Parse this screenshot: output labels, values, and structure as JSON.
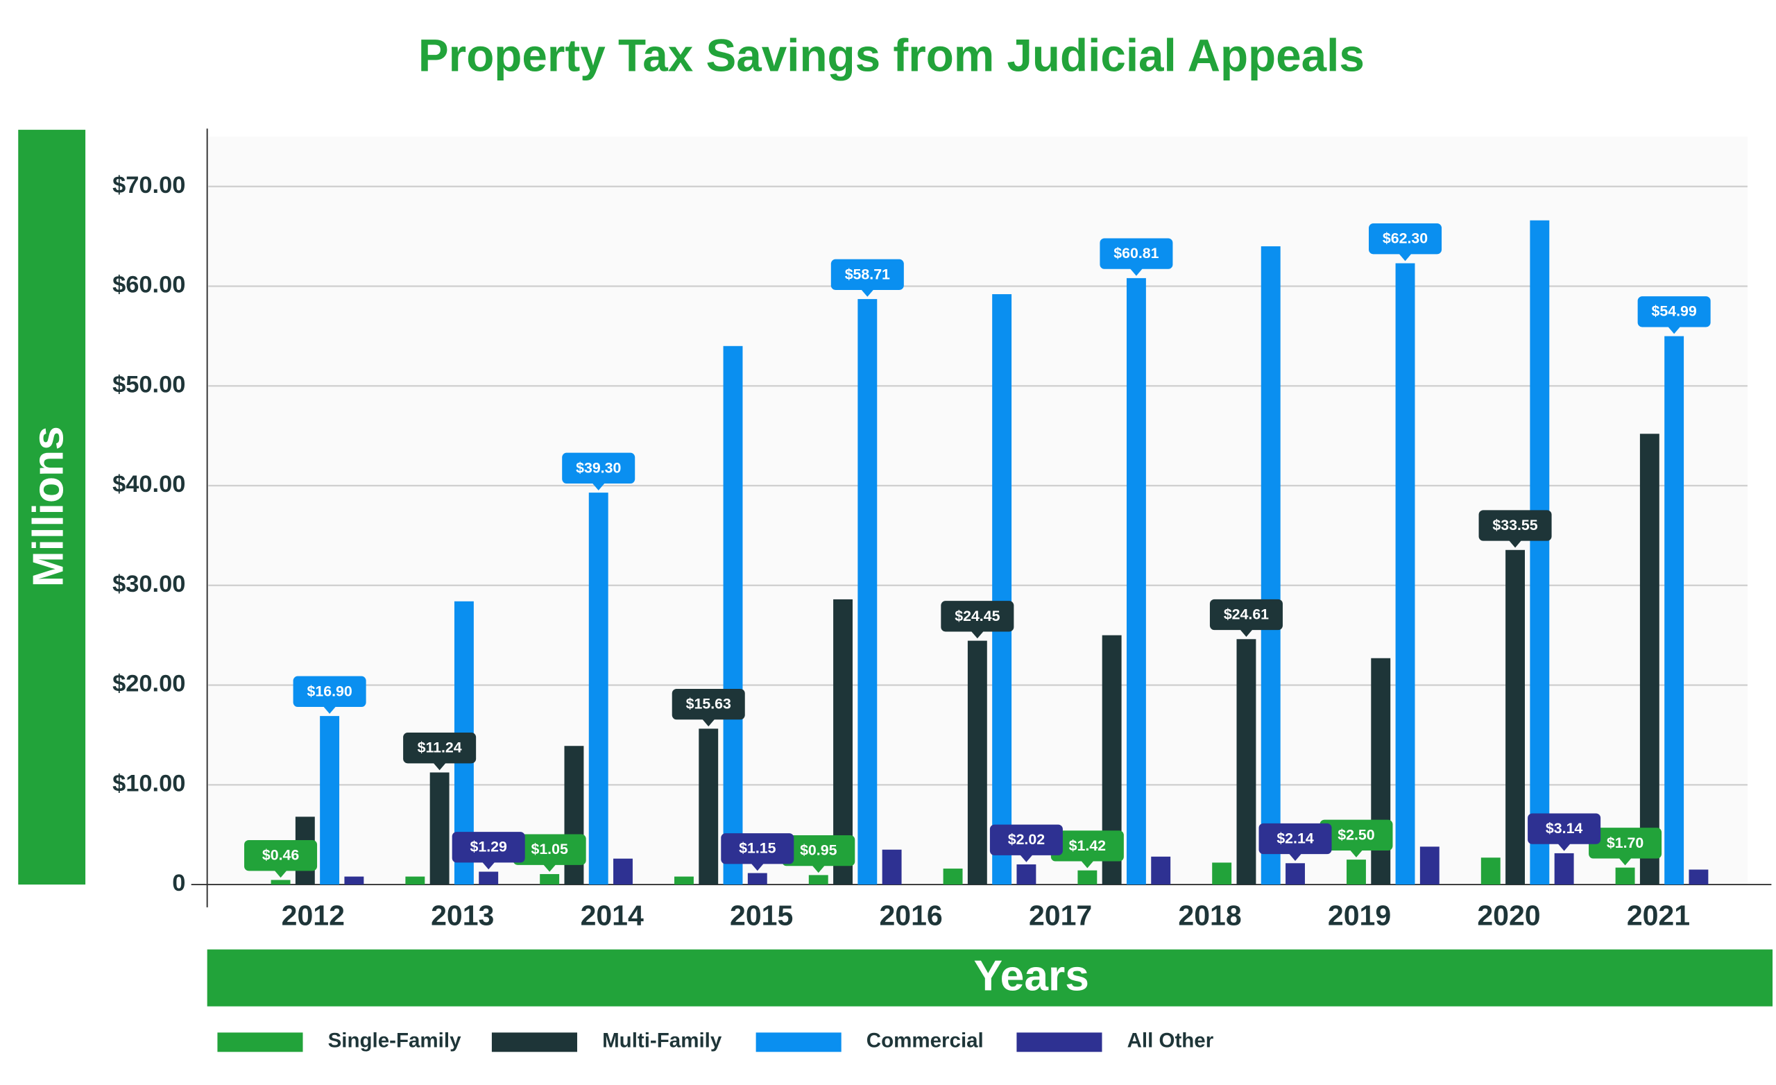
{
  "chart_data": {
    "type": "bar",
    "title": "Property Tax Savings from Judicial Appeals",
    "y_label": "Millions",
    "x_label": "Years",
    "categories": [
      "2012",
      "2013",
      "2014",
      "2015",
      "2016",
      "2017",
      "2018",
      "2019",
      "2020",
      "2021",
      null
    ],
    "series": [
      {
        "name": "Single-Family",
        "color": "#22a33a",
        "values": [
          0.46,
          0.8,
          1.05,
          0.8,
          0.95,
          1.6,
          1.42,
          2.2,
          2.5,
          2.7,
          1.7
        ],
        "value_labels": [
          "$0.46",
          null,
          "$1.05",
          null,
          "$0.95",
          null,
          "$1.42",
          null,
          "$2.50",
          null,
          "$1.70"
        ]
      },
      {
        "name": "Multi-Family",
        "color": "#1e3538",
        "values": [
          6.8,
          11.24,
          13.9,
          15.63,
          28.6,
          24.45,
          25.0,
          24.61,
          22.7,
          33.55,
          45.2
        ],
        "value_labels": [
          null,
          "$11.24",
          null,
          "$15.63",
          null,
          "$24.45",
          null,
          "$24.61",
          null,
          "$33.55",
          null
        ]
      },
      {
        "name": "Commercial",
        "color": "#0a8ff0",
        "values": [
          16.9,
          28.4,
          39.3,
          54.0,
          58.71,
          59.2,
          60.81,
          64.0,
          62.3,
          66.6,
          54.99
        ],
        "value_labels": [
          "$16.90",
          null,
          "$39.30",
          null,
          "$58.71",
          null,
          "$60.81",
          null,
          "$62.30",
          null,
          "$54.99"
        ]
      },
      {
        "name": "All Other",
        "color": "#2e3192",
        "values": [
          0.8,
          1.29,
          2.6,
          1.15,
          3.5,
          2.02,
          2.8,
          2.14,
          3.8,
          3.14,
          1.5
        ],
        "value_labels": [
          null,
          "$1.29",
          null,
          "$1.15",
          null,
          "$2.02",
          null,
          "$2.14",
          null,
          "$3.14",
          null
        ]
      }
    ],
    "ylim": [
      0,
      75
    ],
    "yticks": [
      0,
      {
        "value": 10,
        "label": "$10.00"
      },
      {
        "value": 20,
        "label": "$20.00"
      },
      {
        "value": 30,
        "label": "$30.00"
      },
      {
        "value": 40,
        "label": "$40.00"
      },
      {
        "value": 50,
        "label": "$50.00"
      },
      {
        "value": 60,
        "label": "$60.00"
      },
      {
        "value": 70,
        "label": "$70.00"
      }
    ],
    "grid": true
  }
}
